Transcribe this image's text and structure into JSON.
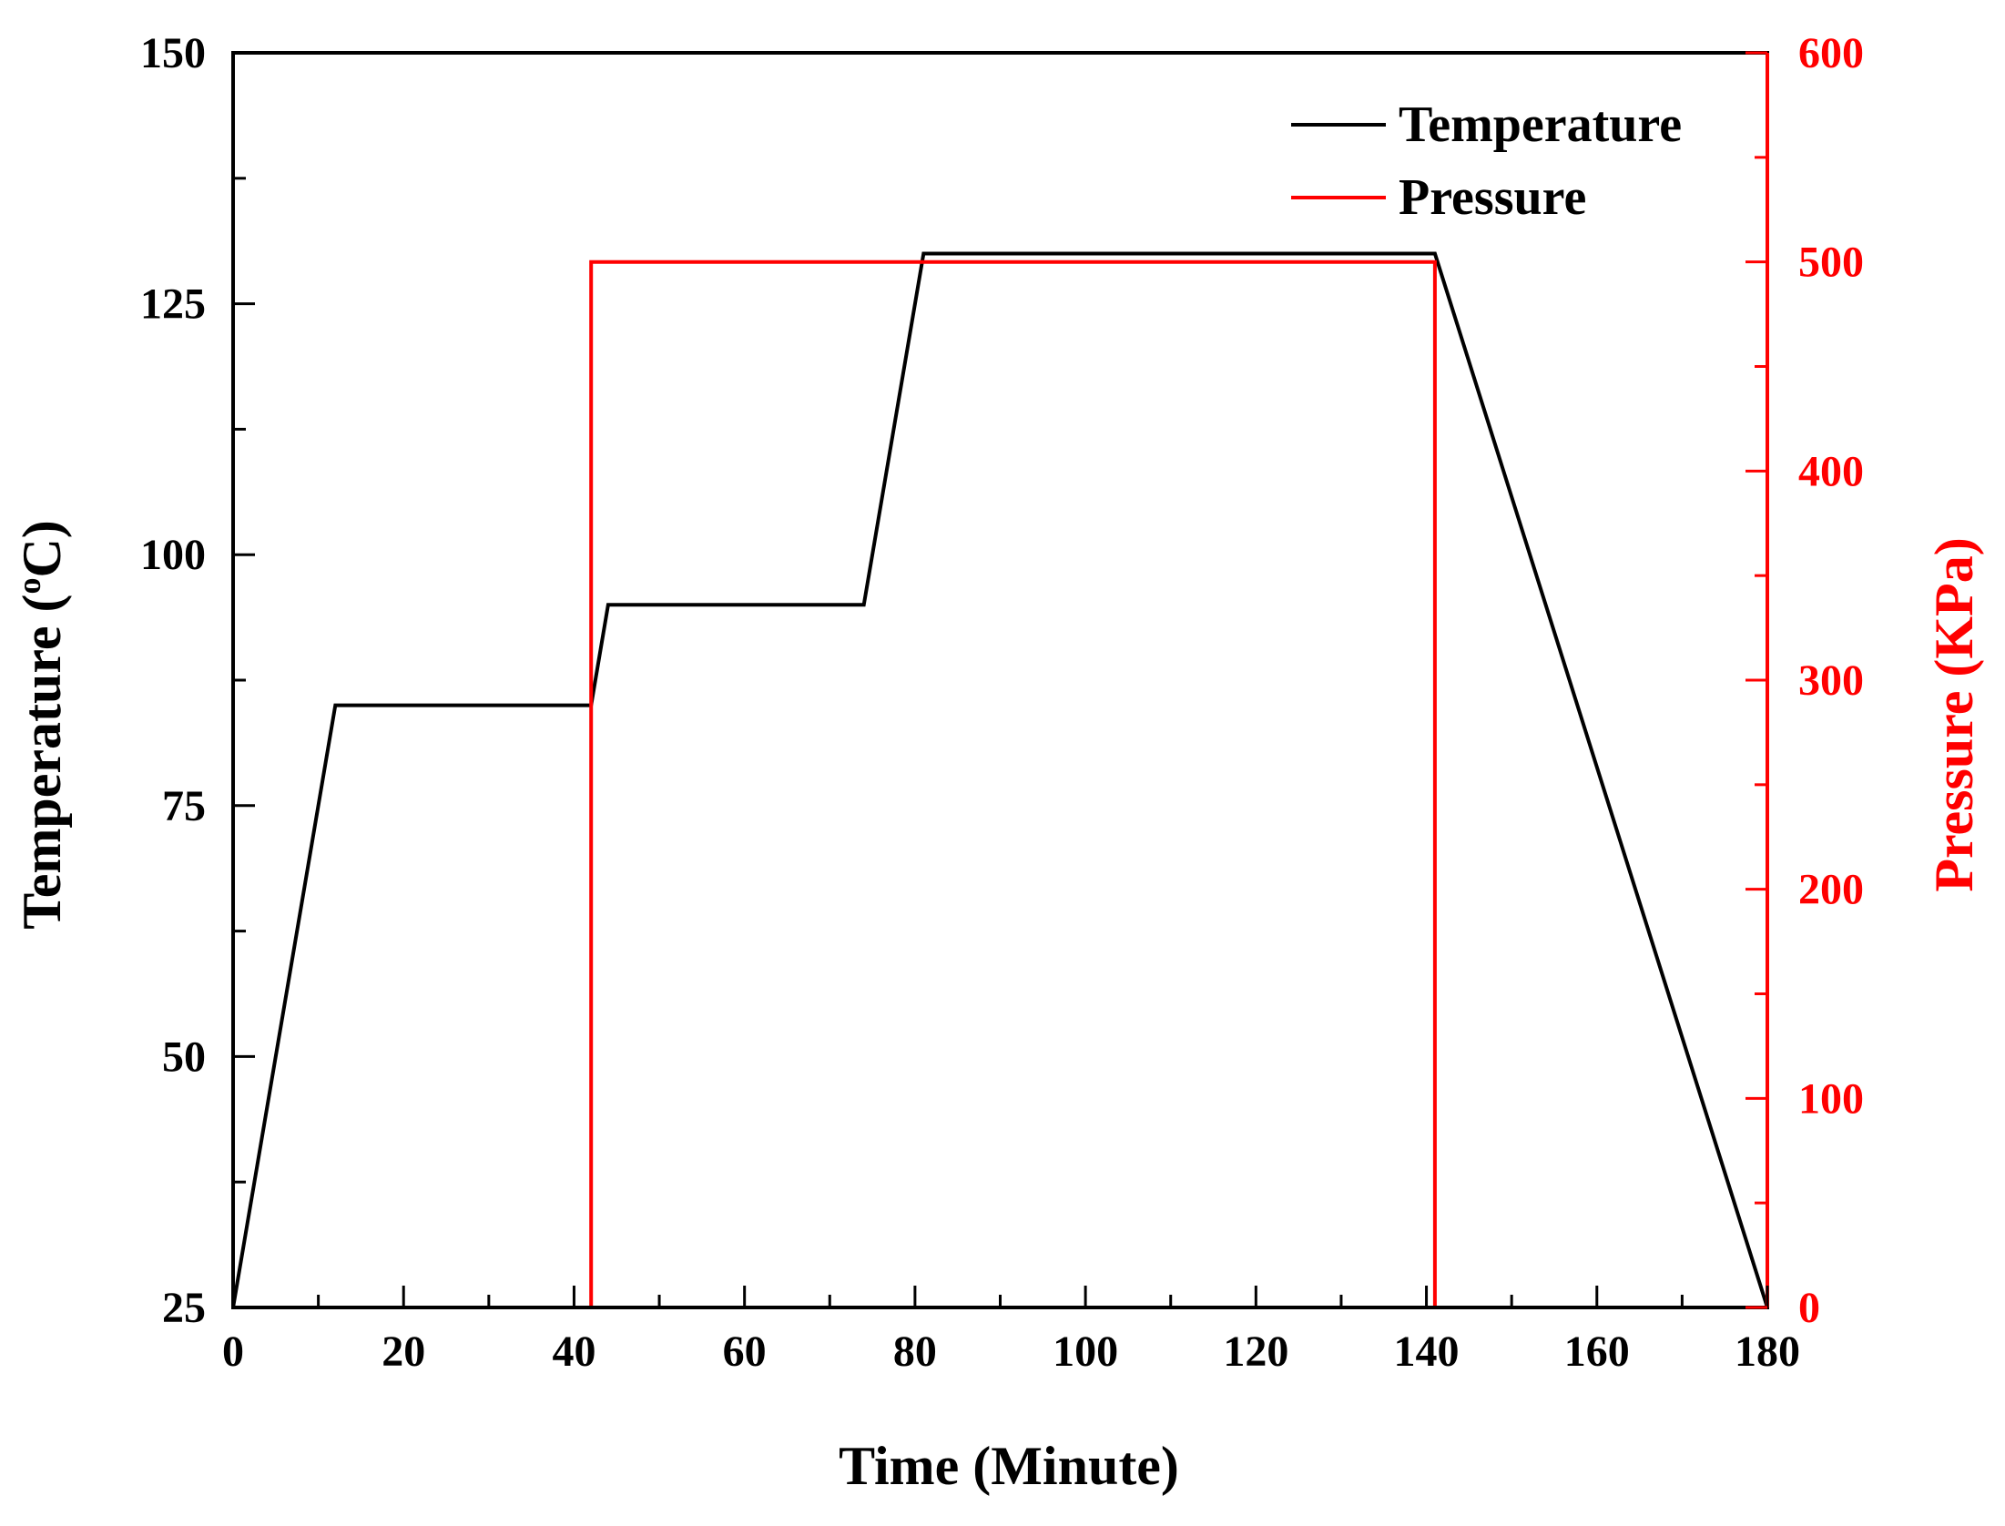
{
  "chart_data": {
    "type": "line",
    "title": "",
    "xlabel": "Time (Minute)",
    "ylabel_left": "Temperature (",
    "ylabel_left_sup": "o",
    "ylabel_left_unit": "C)",
    "ylabel_right": "Pressure (KPa)",
    "xlim": [
      0,
      180
    ],
    "ylim_left": [
      25,
      150
    ],
    "ylim_right": [
      0,
      600
    ],
    "x_ticks": [
      "0",
      "20",
      "40",
      "60",
      "80",
      "100",
      "120",
      "140",
      "160",
      "180"
    ],
    "y_left_ticks": [
      "25",
      "50",
      "75",
      "100",
      "125",
      "150"
    ],
    "y_right_ticks": [
      "0",
      "100",
      "200",
      "300",
      "400",
      "500",
      "600"
    ],
    "grid": false,
    "legend_position": "top-right",
    "colors": {
      "temperature": "#000000",
      "pressure": "#ff0000"
    },
    "series": [
      {
        "name": "Temperature",
        "axis": "left",
        "x": [
          0,
          12,
          42,
          44,
          74,
          81,
          141,
          180
        ],
        "y": [
          25,
          85,
          85,
          95,
          95,
          130,
          130,
          25
        ]
      },
      {
        "name": "Pressure",
        "axis": "right",
        "x": [
          42,
          42,
          141,
          141
        ],
        "y": [
          0,
          500,
          500,
          0
        ]
      }
    ]
  }
}
